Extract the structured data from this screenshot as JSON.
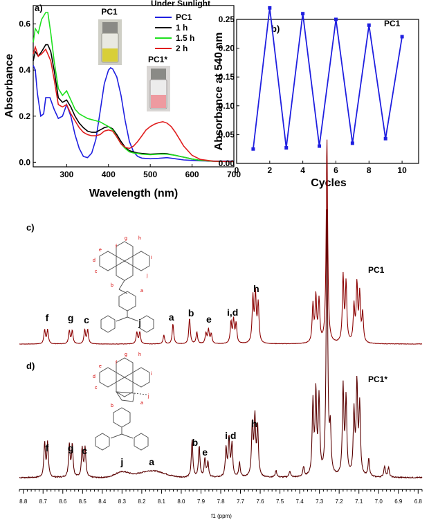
{
  "chart_data": [
    {
      "panel": "a)",
      "type": "line",
      "xlabel": "Wavelength (nm)",
      "ylabel": "Absorbance",
      "xlim": [
        220,
        700
      ],
      "ylim": [
        -0.02,
        0.68
      ],
      "xticks": [
        300,
        400,
        500,
        600,
        700
      ],
      "yticks": [
        0.0,
        0.2,
        0.4,
        0.6
      ],
      "legend_title": "Under Sunlight",
      "legend_position": "top-right",
      "images": [
        {
          "label": "PC1"
        },
        {
          "label": "PC1*"
        }
      ],
      "series": [
        {
          "name": "PC1",
          "color": "#1f1fe0",
          "x": [
            220,
            225,
            230,
            238,
            245,
            250,
            260,
            270,
            280,
            290,
            300,
            310,
            320,
            330,
            340,
            350,
            360,
            370,
            380,
            390,
            400,
            405,
            410,
            420,
            430,
            440,
            450,
            460,
            470,
            480,
            500,
            520,
            540,
            560,
            580,
            600,
            620,
            650,
            680,
            700
          ],
          "y": [
            0.42,
            0.4,
            0.3,
            0.2,
            0.21,
            0.28,
            0.28,
            0.23,
            0.19,
            0.2,
            0.25,
            0.2,
            0.12,
            0.06,
            0.025,
            0.02,
            0.04,
            0.1,
            0.22,
            0.34,
            0.4,
            0.41,
            0.405,
            0.37,
            0.29,
            0.18,
            0.09,
            0.045,
            0.025,
            0.018,
            0.015,
            0.017,
            0.02,
            0.015,
            0.01,
            0.008,
            0.006,
            0.005,
            0.005,
            0.005
          ]
        },
        {
          "name": "1 h",
          "color": "#000000",
          "x": [
            220,
            225,
            232,
            240,
            250,
            255,
            262,
            270,
            280,
            290,
            300,
            310,
            320,
            330,
            340,
            350,
            360,
            370,
            380,
            390,
            400,
            410,
            420,
            430,
            440,
            450,
            460,
            470,
            480,
            500,
            520,
            530,
            540,
            560,
            580,
            600,
            620,
            650,
            680,
            700
          ],
          "y": [
            0.44,
            0.48,
            0.46,
            0.48,
            0.51,
            0.51,
            0.48,
            0.4,
            0.28,
            0.26,
            0.27,
            0.24,
            0.2,
            0.17,
            0.15,
            0.135,
            0.13,
            0.13,
            0.14,
            0.15,
            0.155,
            0.145,
            0.12,
            0.09,
            0.065,
            0.05,
            0.045,
            0.04,
            0.038,
            0.035,
            0.037,
            0.038,
            0.037,
            0.03,
            0.022,
            0.014,
            0.008,
            0.004,
            0.003,
            0.003
          ]
        },
        {
          "name": "1.5 h",
          "color": "#1ee01e",
          "x": [
            220,
            225,
            232,
            240,
            250,
            255,
            262,
            270,
            280,
            290,
            300,
            310,
            320,
            330,
            340,
            350,
            360,
            370,
            380,
            390,
            400,
            410,
            420,
            430,
            440,
            450,
            460,
            470,
            480,
            500,
            520,
            530,
            540,
            560,
            580,
            600,
            620,
            650,
            680,
            700
          ],
          "y": [
            0.52,
            0.58,
            0.56,
            0.62,
            0.65,
            0.65,
            0.56,
            0.44,
            0.32,
            0.29,
            0.31,
            0.27,
            0.23,
            0.21,
            0.2,
            0.19,
            0.185,
            0.18,
            0.175,
            0.165,
            0.155,
            0.14,
            0.11,
            0.08,
            0.06,
            0.045,
            0.04,
            0.038,
            0.035,
            0.033,
            0.035,
            0.036,
            0.035,
            0.03,
            0.022,
            0.014,
            0.008,
            0.005,
            0.003,
            0.003
          ]
        },
        {
          "name": "2 h",
          "color": "#e01e1e",
          "x": [
            220,
            225,
            232,
            240,
            250,
            255,
            262,
            270,
            280,
            290,
            300,
            310,
            320,
            330,
            340,
            350,
            360,
            370,
            380,
            390,
            400,
            410,
            420,
            430,
            440,
            450,
            460,
            470,
            480,
            490,
            500,
            510,
            520,
            530,
            540,
            550,
            560,
            570,
            580,
            600,
            620,
            650,
            680,
            700
          ],
          "y": [
            0.47,
            0.5,
            0.46,
            0.47,
            0.49,
            0.47,
            0.44,
            0.36,
            0.25,
            0.24,
            0.25,
            0.21,
            0.18,
            0.15,
            0.13,
            0.12,
            0.115,
            0.115,
            0.12,
            0.135,
            0.14,
            0.135,
            0.11,
            0.08,
            0.065,
            0.06,
            0.07,
            0.09,
            0.115,
            0.14,
            0.155,
            0.165,
            0.172,
            0.176,
            0.17,
            0.155,
            0.13,
            0.1,
            0.07,
            0.03,
            0.012,
            0.005,
            0.003,
            0.003
          ]
        }
      ]
    },
    {
      "panel": "b)",
      "type": "line",
      "title": "PC1",
      "xlabel": "Cycles",
      "ylabel": "Absorbance at 540 nm",
      "xlim": [
        0,
        11
      ],
      "ylim": [
        0.0,
        0.25
      ],
      "xticks": [
        0,
        2,
        4,
        6,
        8,
        10
      ],
      "yticks": [
        0.0,
        0.05,
        0.1,
        0.15,
        0.2,
        0.25
      ],
      "color": "#1f1fe0",
      "x": [
        1,
        2,
        3,
        4,
        5,
        6,
        7,
        8,
        9,
        10
      ],
      "y": [
        0.025,
        0.27,
        0.027,
        0.26,
        0.03,
        0.25,
        0.035,
        0.24,
        0.043,
        0.22
      ]
    },
    {
      "panel": "c)",
      "type": "line",
      "title": "PC1",
      "color": "#8b0000",
      "peak_labels": [
        {
          "text": "f",
          "ppm": 8.68
        },
        {
          "text": "g",
          "ppm": 8.56
        },
        {
          "text": "c",
          "ppm": 8.48
        },
        {
          "text": "j",
          "ppm": 8.21
        },
        {
          "text": "a",
          "ppm": 8.05
        },
        {
          "text": "b",
          "ppm": 7.95
        },
        {
          "text": "e",
          "ppm": 7.86
        },
        {
          "text": "i,d",
          "ppm": 7.74
        },
        {
          "text": "h",
          "ppm": 7.62
        }
      ],
      "structure_labels": [
        "e",
        "f",
        "g",
        "h",
        "i",
        "d",
        "c",
        "b",
        "a",
        "j"
      ]
    },
    {
      "panel": "d)",
      "type": "line",
      "title": "PC1*",
      "color": "#5a0000",
      "peak_labels": [
        {
          "text": "f",
          "ppm": 8.68
        },
        {
          "text": "g",
          "ppm": 8.56
        },
        {
          "text": "c",
          "ppm": 8.49
        },
        {
          "text": "j",
          "ppm": 8.3
        },
        {
          "text": "a",
          "ppm": 8.15
        },
        {
          "text": "b",
          "ppm": 7.93
        },
        {
          "text": "e",
          "ppm": 7.88
        },
        {
          "text": "i,d",
          "ppm": 7.75
        },
        {
          "text": "h",
          "ppm": 7.63
        }
      ],
      "structure_labels": [
        "e",
        "f",
        "g",
        "h",
        "i",
        "d",
        "c",
        "b",
        "a",
        "j"
      ]
    },
    {
      "type": "axis",
      "xlabel": "f1 (ppm)",
      "xlim": [
        8.82,
        6.78
      ],
      "xticks": [
        8.8,
        8.7,
        8.6,
        8.5,
        8.4,
        8.3,
        8.2,
        8.1,
        8.0,
        7.9,
        7.8,
        7.7,
        7.6,
        7.5,
        7.4,
        7.3,
        7.2,
        7.1,
        7.0,
        6.9,
        6.8
      ]
    }
  ]
}
